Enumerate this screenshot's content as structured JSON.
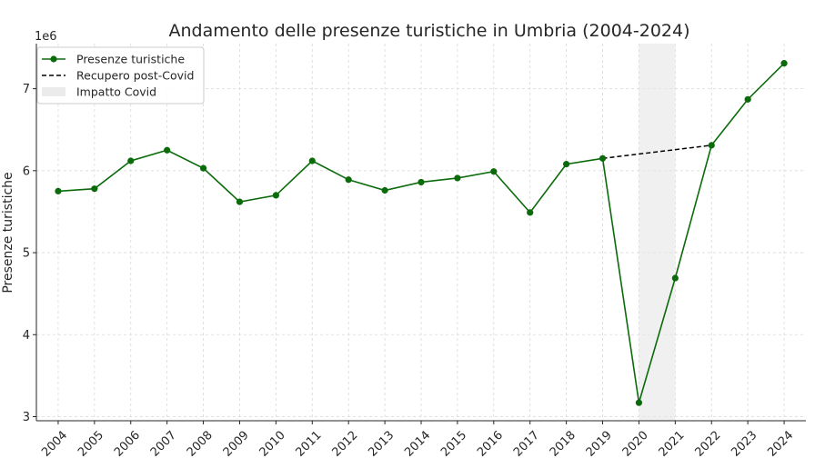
{
  "chart_data": {
    "type": "line",
    "title": "Andamento delle presenze turistiche in Umbria (2004-2024)",
    "ylabel": "Presenze turistiche",
    "xlabel": "",
    "y_offset_label": "1e6",
    "x": [
      2004,
      2005,
      2006,
      2007,
      2008,
      2009,
      2010,
      2011,
      2012,
      2013,
      2014,
      2015,
      2016,
      2017,
      2018,
      2019,
      2020,
      2021,
      2022,
      2023,
      2024
    ],
    "xlim": [
      2003.4,
      2024.6
    ],
    "ylim": [
      2950000,
      7550000
    ],
    "yticks": [
      3000000,
      4000000,
      5000000,
      6000000,
      7000000
    ],
    "ytick_labels": [
      "3",
      "4",
      "5",
      "6",
      "7"
    ],
    "grid": true,
    "legend_position": "top-left",
    "series": [
      {
        "name": "Presenze turistiche",
        "style": "line-markers",
        "color": "#0b6b0b",
        "values": [
          5750000,
          5780000,
          6120000,
          6250000,
          6030000,
          5620000,
          5700000,
          6120000,
          5890000,
          5760000,
          5860000,
          5910000,
          5990000,
          5490000,
          6080000,
          6150000,
          3170000,
          4690000,
          6310000,
          6870000,
          7310000
        ]
      },
      {
        "name": "Recupero post-Covid",
        "style": "dashed",
        "color": "#000000",
        "x": [
          2019,
          2022
        ],
        "values": [
          6150000,
          6310000
        ]
      }
    ],
    "shaded_regions": [
      {
        "name": "Impatto Covid",
        "x_from": 2020,
        "x_to": 2021,
        "color": "#e6e6e6"
      }
    ]
  }
}
